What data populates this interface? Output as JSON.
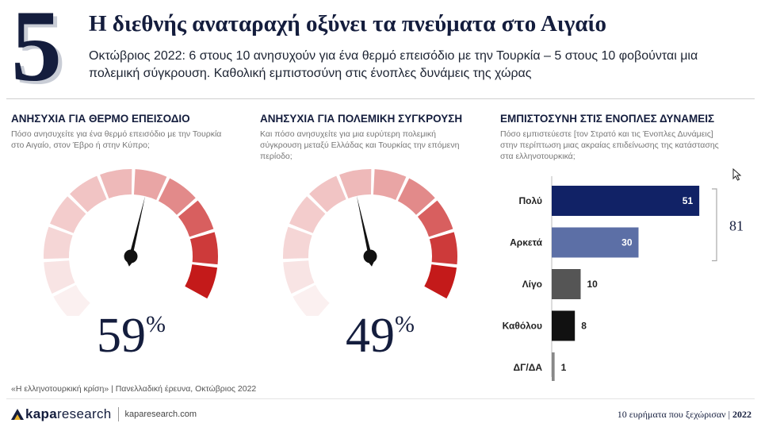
{
  "header": {
    "number": "5",
    "title": "Η διεθνής αναταραχή οξύνει τα πνεύματα στο Αιγαίο",
    "subtitle": "Οκτώβριος 2022: 6 στους 10 ανησυχούν για ένα θερμό επεισόδιο με την Τουρκία – 5 στους 10 φοβούνται μια πολεμική σύγκρουση. Καθολική εμπιστοσύνη στις ένοπλες δυνάμεις της χώρας"
  },
  "panels": [
    {
      "title": "ΑΝΗΣΥΧΙΑ ΓΙΑ ΘΕΡΜΟ ΕΠΕΙΣΟΔΙΟ",
      "question": "Πόσο ανησυχείτε για ένα θερμό επεισόδιο με την Τουρκία στο Αιγαίο, στον Έβρο ή στην Κύπρο;",
      "value_text": "59",
      "pct_sign": "%"
    },
    {
      "title": "ΑΝΗΣΥΧΙΑ ΓΙΑ ΠΟΛΕΜΙΚΗ ΣΥΓΚΡΟΥΣΗ",
      "question": "Και πόσο ανησυχείτε για μια ευρύτερη πολεμική σύγκρουση μεταξύ Ελλάδας και Τουρκίας την επόμενη περίοδο;",
      "value_text": "49",
      "pct_sign": "%"
    },
    {
      "title": "ΕΜΠΙΣΤΟΣΥΝΗ ΣΤΙΣ ΕΝΟΠΛΕΣ ΔΥΝΑΜΕΙΣ",
      "question": "Πόσο εμπιστεύεστε [τον Στρατό και τις Ένοπλες Δυνάμεις] στην περίπτωση μιας ακραίας επιδείνωσης της κατάστασης στα ελληνοτουρκικά;"
    }
  ],
  "chart_data": [
    {
      "type": "gauge",
      "title": "ΑΝΗΣΥΧΙΑ ΓΙΑ ΘΕΡΜΟ ΕΠΕΙΣΟΔΙΟ",
      "value": 59,
      "range": [
        0,
        100
      ],
      "segment_colors": [
        "#fbf0f0",
        "#f8e4e4",
        "#f5d6d6",
        "#f3cccc",
        "#f1c4c4",
        "#eeb9b9",
        "#e9a5a5",
        "#e28a8a",
        "#d85f5f",
        "#cd3a3a",
        "#c41a1a"
      ]
    },
    {
      "type": "gauge",
      "title": "ΑΝΗΣΥΧΙΑ ΓΙΑ ΠΟΛΕΜΙΚΗ ΣΥΓΚΡΟΥΣΗ",
      "value": 49,
      "range": [
        0,
        100
      ],
      "segment_colors": [
        "#fbf0f0",
        "#f8e4e4",
        "#f5d6d6",
        "#f3cccc",
        "#f1c4c4",
        "#eeb9b9",
        "#e9a5a5",
        "#e28a8a",
        "#d85f5f",
        "#cd3a3a",
        "#c41a1a"
      ]
    },
    {
      "type": "bar",
      "orientation": "horizontal",
      "title": "ΕΜΠΙΣΤΟΣΥΝΗ ΣΤΙΣ ΕΝΟΠΛΕΣ ΔΥΝΑΜΕΙΣ",
      "categories": [
        "Πολύ",
        "Αρκετά",
        "Λίγο",
        "Καθόλου",
        "ΔΓ/ΔΑ"
      ],
      "values": [
        51,
        30,
        10,
        8,
        1
      ],
      "colors": [
        "#112266",
        "#5c6fa6",
        "#555555",
        "#111111",
        "#888888"
      ],
      "value_label_inside": [
        true,
        true,
        false,
        false,
        false
      ],
      "xlim": [
        0,
        60
      ],
      "bracket": {
        "categories": [
          "Πολύ",
          "Αρκετά"
        ],
        "label": "81"
      }
    }
  ],
  "footer": {
    "source": "«Η ελληνοτουρκική κρίση» | Πανελλαδική έρευνα, Οκτώβριος 2022",
    "logo_bold": "kapa",
    "logo_light": "research",
    "logo_url": "kaparesearch.com",
    "series_title": "10 ευρήματα που ξεχώρισαν",
    "year": "2022"
  }
}
